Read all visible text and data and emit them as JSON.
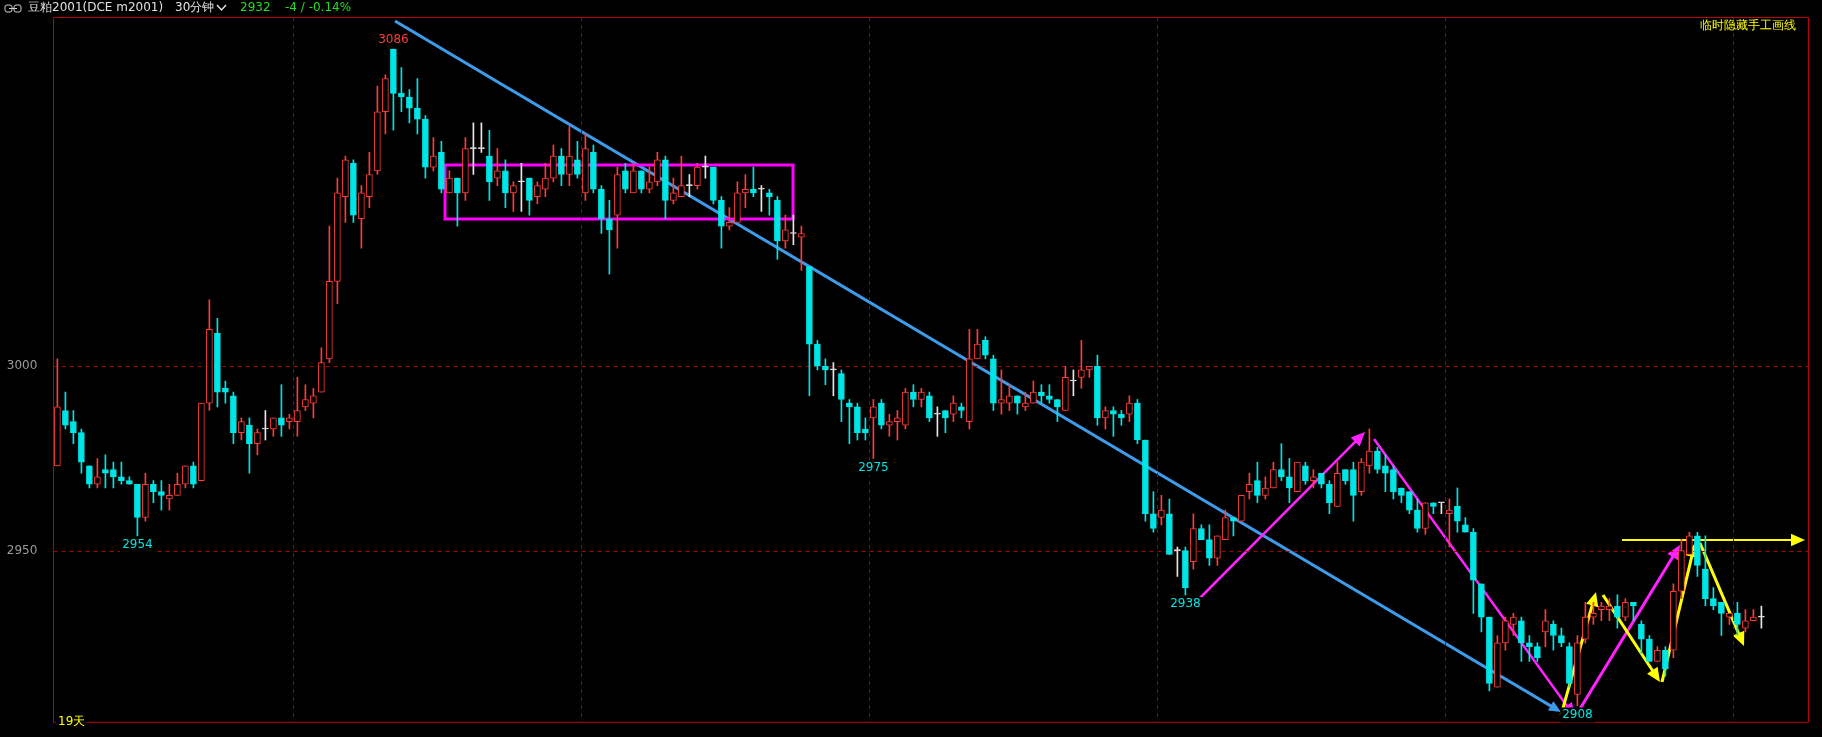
{
  "chart_data": {
    "type": "candlestick",
    "title": "豆粕2001(DCE m2001)",
    "subtitle": "30分钟",
    "annotations": [
      "2932",
      "-4 / -0.14%",
      "临时隐藏手工画线",
      "19天",
      {
        "text": "3086",
        "y": 3086
      },
      {
        "text": "2954",
        "y": 2954
      },
      {
        "text": "2975",
        "y": 2975
      },
      {
        "text": "2938",
        "y": 2938
      },
      {
        "text": "2908",
        "y": 2908
      }
    ],
    "categories": [
      null,
      null,
      null,
      null,
      null,
      null,
      null,
      null,
      null,
      null,
      null,
      null,
      null,
      null,
      null,
      null,
      null,
      null,
      null,
      null,
      null,
      null,
      null,
      null,
      null,
      null,
      null,
      null,
      null,
      null,
      null,
      null,
      null,
      null,
      null,
      null,
      null,
      null,
      null,
      null,
      null,
      null,
      null,
      null,
      null,
      null,
      null,
      null,
      null,
      null,
      null,
      null,
      null,
      null,
      null,
      null,
      null,
      null,
      null,
      null,
      null,
      null,
      null,
      null,
      null,
      null,
      null,
      null,
      null,
      null,
      null,
      null,
      null,
      null,
      null,
      null,
      null,
      null,
      null,
      null,
      null,
      null,
      null,
      null,
      null,
      null,
      null,
      null,
      null,
      null,
      null,
      null,
      null,
      null,
      null,
      null,
      null,
      null,
      null,
      null,
      null,
      null,
      null,
      null,
      null,
      null,
      null,
      null,
      null,
      null,
      null,
      null,
      null,
      null,
      null,
      null,
      null,
      null,
      null,
      null,
      null,
      null,
      null,
      null,
      null,
      null,
      null,
      null,
      null,
      null,
      null,
      null,
      null,
      null,
      null,
      null,
      null,
      null,
      null,
      null,
      null,
      null,
      null,
      null,
      null,
      null,
      null,
      null,
      null,
      null,
      null,
      null,
      null,
      null,
      null,
      null,
      null,
      null,
      null,
      null,
      null,
      null,
      null,
      null,
      null,
      null,
      null,
      null,
      null,
      null,
      null,
      null,
      null,
      null,
      null,
      null,
      null,
      null,
      null,
      null,
      null,
      null,
      null,
      null,
      null,
      null,
      null,
      null,
      null,
      null,
      null,
      null,
      null,
      null,
      null,
      null,
      null,
      null,
      null,
      null,
      null,
      null,
      null,
      null,
      null,
      null,
      null,
      null,
      null,
      null,
      null,
      null,
      null,
      null
    ],
    "ohlc": [
      [
        2973,
        3002,
        2973,
        2989
      ],
      [
        2988,
        2993,
        2983,
        2984
      ],
      [
        2985,
        2988,
        2979,
        2982
      ],
      [
        2982,
        2983,
        2971,
        2974
      ],
      [
        2973,
        2973,
        2967,
        2968
      ],
      [
        2968,
        2975,
        2967,
        2970
      ],
      [
        2972,
        2976,
        2967,
        2971
      ],
      [
        2972,
        2974,
        2967,
        2970
      ],
      [
        2970,
        2974,
        2968,
        2969
      ],
      [
        2969,
        2970,
        2968,
        2968
      ],
      [
        2968,
        2968,
        2954,
        2959
      ],
      [
        2959,
        2971,
        2958,
        2968
      ],
      [
        2968,
        2969,
        2963,
        2966
      ],
      [
        2966,
        2969,
        2961,
        2965
      ],
      [
        2964,
        2968,
        2961,
        2965
      ],
      [
        2965,
        2971,
        2965,
        2968
      ],
      [
        2968,
        2973,
        2967,
        2973
      ],
      [
        2973,
        2974,
        2967,
        2968
      ],
      [
        2969,
        2990,
        2969,
        2990
      ],
      [
        2990,
        3018,
        2988,
        3010
      ],
      [
        3009,
        3013,
        2989,
        2993
      ],
      [
        2994,
        2996,
        2990,
        2993
      ],
      [
        2992,
        2993,
        2979,
        2982
      ],
      [
        2982,
        2986,
        2980,
        2985
      ],
      [
        2984,
        2986,
        2971,
        2979
      ],
      [
        2979,
        2983,
        2976,
        2982
      ],
      [
        2983,
        2988,
        2980,
        2983
      ],
      [
        2983,
        2986,
        2981,
        2986
      ],
      [
        2986,
        2995,
        2981,
        2984
      ],
      [
        2985,
        2987,
        2983,
        2986
      ],
      [
        2985,
        2997,
        2981,
        2988
      ],
      [
        2989,
        2995,
        2988,
        2991
      ],
      [
        2990,
        2994,
        2986,
        2992
      ],
      [
        2993,
        3005,
        2993,
        3001
      ],
      [
        3002,
        3038,
        3001,
        3023
      ],
      [
        3023,
        3051,
        3017,
        3047
      ],
      [
        3046,
        3057,
        3039,
        3056
      ],
      [
        3055,
        3056,
        3039,
        3041
      ],
      [
        3040,
        3049,
        3032,
        3047
      ],
      [
        3046,
        3058,
        3043,
        3052
      ],
      [
        3053,
        3076,
        3052,
        3069
      ],
      [
        3069,
        3079,
        3063,
        3078
      ],
      [
        3086,
        3086,
        3064,
        3074
      ],
      [
        3074,
        3081,
        3069,
        3073
      ],
      [
        3073,
        3075,
        3066,
        3070
      ],
      [
        3070,
        3078,
        3063,
        3067
      ],
      [
        3067,
        3068,
        3051,
        3054
      ],
      [
        3054,
        3062,
        3053,
        3057
      ],
      [
        3058,
        3061,
        3047,
        3048
      ],
      [
        3047,
        3053,
        3047,
        3051
      ],
      [
        3051,
        3051,
        3038,
        3047
      ],
      [
        3047,
        3062,
        3045,
        3059
      ],
      [
        3059,
        3066,
        3052,
        3059
      ],
      [
        3059,
        3066,
        3058,
        3059
      ],
      [
        3057,
        3064,
        3045,
        3050
      ],
      [
        3051,
        3059,
        3049,
        3053
      ],
      [
        3053,
        3056,
        3043,
        3047
      ],
      [
        3047,
        3050,
        3042,
        3049
      ],
      [
        3050,
        3055,
        3042,
        3050
      ],
      [
        3051,
        3051,
        3041,
        3045
      ],
      [
        3046,
        3050,
        3044,
        3049
      ],
      [
        3048,
        3055,
        3046,
        3051
      ],
      [
        3051,
        3060,
        3050,
        3057
      ],
      [
        3057,
        3059,
        3049,
        3052
      ],
      [
        3052,
        3065,
        3049,
        3057
      ],
      [
        3056,
        3061,
        3051,
        3052
      ],
      [
        3047,
        3063,
        3045,
        3059
      ],
      [
        3058,
        3060,
        3047,
        3048
      ],
      [
        3048,
        3049,
        3036,
        3040
      ],
      [
        3040,
        3045,
        3025,
        3037
      ],
      [
        3041,
        3054,
        3032,
        3052
      ],
      [
        3053,
        3055,
        3047,
        3048
      ],
      [
        3047,
        3055,
        3047,
        3053
      ],
      [
        3053,
        3053,
        3047,
        3048
      ],
      [
        3048,
        3054,
        3047,
        3050
      ],
      [
        3050,
        3058,
        3049,
        3056
      ],
      [
        3056,
        3057,
        3040,
        3045
      ],
      [
        3045,
        3051,
        3044,
        3047
      ],
      [
        3046,
        3057,
        3046,
        3049
      ],
      [
        3049,
        3052,
        3046,
        3049
      ],
      [
        3049,
        3055,
        3048,
        3054
      ],
      [
        3054,
        3057,
        3051,
        3054
      ],
      [
        3054,
        3054,
        3044,
        3045
      ],
      [
        3045,
        3046,
        3032,
        3038
      ],
      [
        3038,
        3043,
        3037,
        3039
      ],
      [
        3039,
        3050,
        3039,
        3047
      ],
      [
        3047,
        3052,
        3043,
        3048
      ],
      [
        3048,
        3054,
        3046,
        3047
      ],
      [
        3048,
        3049,
        3042,
        3048
      ],
      [
        3047,
        3048,
        3041,
        3046
      ],
      [
        3045,
        3046,
        3029,
        3034
      ],
      [
        3034,
        3041,
        3032,
        3037
      ],
      [
        3036,
        3041,
        3033,
        3036
      ],
      [
        3035,
        3038,
        3026,
        3036
      ],
      [
        3027,
        3027,
        2992,
        3006
      ],
      [
        3006,
        3007,
        2999,
        3000
      ],
      [
        3000,
        3002,
        2995,
        2999
      ],
      [
        2999,
        3001,
        2992,
        2999
      ],
      [
        2998,
        2999,
        2985,
        2991
      ],
      [
        2990,
        2991,
        2979,
        2989
      ],
      [
        2989,
        2990,
        2980,
        2982
      ],
      [
        2983,
        2986,
        2980,
        2982
      ],
      [
        2986,
        2991,
        2975,
        2989
      ],
      [
        2990,
        2991,
        2983,
        2984
      ],
      [
        2984,
        2987,
        2981,
        2985
      ],
      [
        2985,
        2988,
        2980,
        2986
      ],
      [
        2984,
        2994,
        2983,
        2993
      ],
      [
        2993,
        2995,
        2989,
        2991
      ],
      [
        2991,
        2994,
        2989,
        2993
      ],
      [
        2992,
        2993,
        2985,
        2986
      ],
      [
        2987,
        2989,
        2981,
        2987
      ],
      [
        2988,
        2988,
        2982,
        2986
      ],
      [
        2987,
        2992,
        2985,
        2990
      ],
      [
        2989,
        2990,
        2986,
        2988
      ],
      [
        2985,
        3010,
        2983,
        3002
      ],
      [
        3002,
        3010,
        3002,
        3006
      ],
      [
        3007,
        3008,
        3002,
        3003
      ],
      [
        3002,
        3003,
        2988,
        2990
      ],
      [
        2990,
        2999,
        2987,
        2991
      ],
      [
        2990,
        2995,
        2988,
        2992
      ],
      [
        2992,
        2992,
        2987,
        2990
      ],
      [
        2989,
        2993,
        2988,
        2990
      ],
      [
        2990,
        2996,
        2990,
        2993
      ],
      [
        2993,
        2995,
        2990,
        2992
      ],
      [
        2992,
        2995,
        2990,
        2991
      ],
      [
        2991,
        2991,
        2985,
        2989
      ],
      [
        2988,
        3000,
        2988,
        2997
      ],
      [
        2996,
        2999,
        2992,
        2996
      ],
      [
        2997,
        3007,
        2994,
        2999
      ],
      [
        2999,
        3000,
        2997,
        3000
      ],
      [
        3000,
        3003,
        2984,
        2986
      ],
      [
        2986,
        2989,
        2983,
        2988
      ],
      [
        2988,
        2989,
        2981,
        2987
      ],
      [
        2987,
        2988,
        2984,
        2986
      ],
      [
        2987,
        2992,
        2985,
        2990
      ],
      [
        2990,
        2991,
        2979,
        2980
      ],
      [
        2980,
        2980,
        2958,
        2960
      ],
      [
        2960,
        2966,
        2955,
        2956
      ],
      [
        2959,
        2965,
        2957,
        2961
      ],
      [
        2960,
        2964,
        2949,
        2949
      ],
      [
        2950,
        2951,
        2943,
        2950
      ],
      [
        2950,
        2951,
        2938,
        2940
      ],
      [
        2947,
        2960,
        2945,
        2956
      ],
      [
        2956,
        2957,
        2953,
        2953
      ],
      [
        2953,
        2957,
        2946,
        2948
      ],
      [
        2948,
        2954,
        2946,
        2954
      ],
      [
        2953,
        2961,
        2953,
        2959
      ],
      [
        2959,
        2959,
        2954,
        2958
      ],
      [
        2958,
        2965,
        2958,
        2965
      ],
      [
        2966,
        2971,
        2964,
        2968
      ],
      [
        2969,
        2974,
        2963,
        2965
      ],
      [
        2965,
        2970,
        2964,
        2967
      ],
      [
        2967,
        2974,
        2967,
        2972
      ],
      [
        2972,
        2979,
        2969,
        2970
      ],
      [
        2970,
        2975,
        2963,
        2967
      ],
      [
        2966,
        2974,
        2966,
        2974
      ],
      [
        2973,
        2974,
        2968,
        2969
      ],
      [
        2969,
        2972,
        2967,
        2970
      ],
      [
        2971,
        2971,
        2967,
        2968
      ],
      [
        2968,
        2969,
        2960,
        2963
      ],
      [
        2962,
        2974,
        2962,
        2971
      ],
      [
        2972,
        2972,
        2968,
        2969
      ],
      [
        2972,
        2974,
        2958,
        2965
      ],
      [
        2966,
        2975,
        2965,
        2974
      ],
      [
        2973,
        2983,
        2971,
        2977
      ],
      [
        2977,
        2978,
        2971,
        2972
      ],
      [
        2973,
        2976,
        2966,
        2971
      ],
      [
        2972,
        2973,
        2964,
        2966
      ],
      [
        2967,
        2967,
        2963,
        2965
      ],
      [
        2966,
        2966,
        2960,
        2961
      ],
      [
        2961,
        2964,
        2955,
        2956
      ],
      [
        2956,
        2963,
        2954.5,
        2963
      ],
      [
        2963,
        2963,
        2960,
        2962
      ],
      [
        2963,
        2963,
        2960,
        2963
      ],
      [
        2960,
        2964,
        2951,
        2961
      ],
      [
        2962,
        2967,
        2955,
        2958
      ],
      [
        2957,
        2959,
        2955,
        2955
      ],
      [
        2955,
        2956,
        2933,
        2942
      ],
      [
        2941,
        2941,
        2928,
        2932
      ],
      [
        2932,
        2932,
        2912,
        2914
      ],
      [
        2913,
        2927,
        2913,
        2925
      ],
      [
        2925,
        2932,
        2923,
        2931
      ],
      [
        2930,
        2933,
        2927,
        2932
      ],
      [
        2931,
        2932,
        2920,
        2925
      ],
      [
        2925,
        2927,
        2920,
        2924
      ],
      [
        2924,
        2925,
        2920,
        2921
      ],
      [
        2928,
        2934,
        2924,
        2931
      ],
      [
        2930,
        2931,
        2923,
        2927
      ],
      [
        2927,
        2929,
        2924,
        2925
      ],
      [
        2924,
        2925,
        2913,
        2914
      ],
      [
        2911,
        2927,
        2908,
        2925
      ],
      [
        2926,
        2936,
        2925,
        2932
      ],
      [
        2932,
        2936,
        2930,
        2933
      ],
      [
        2934,
        2936,
        2931,
        2935
      ],
      [
        2934,
        2937,
        2931,
        2935
      ],
      [
        2935,
        2938,
        2929,
        2932
      ],
      [
        2932,
        2937,
        2931,
        2936
      ],
      [
        2936,
        2936,
        2931,
        2935
      ],
      [
        2930,
        2931,
        2922,
        2926
      ],
      [
        2926,
        2927,
        2920,
        2920
      ],
      [
        2920,
        2924,
        2920,
        2923
      ],
      [
        2923,
        2924,
        2916,
        2918
      ],
      [
        2923,
        2941,
        2921,
        2939
      ],
      [
        2939,
        2953,
        2937,
        2950
      ],
      [
        2949,
        2955,
        2949,
        2954
      ],
      [
        2954,
        2955,
        2943,
        2946
      ],
      [
        2945,
        2954,
        2935,
        2937
      ],
      [
        2937,
        2940,
        2934,
        2935
      ],
      [
        2936,
        2936,
        2927,
        2933
      ],
      [
        2932,
        2933,
        2930,
        2933
      ],
      [
        2933,
        2936,
        2927,
        2930
      ],
      [
        2929,
        2934,
        2928,
        2931
      ],
      [
        2931,
        2934,
        2931,
        2932
      ],
      [
        2932,
        2935,
        2929,
        2932
      ]
    ],
    "colors": [
      "#ff3c3c",
      "#00e6e6",
      "#00e6e6",
      "#00e6e6",
      "#00e6e6",
      "#ff3c3c",
      "#00e6e6",
      "#00e6e6",
      "#00e6e6",
      "#00e6e6",
      "#00e6e6",
      "#ff3c3c",
      "#00e6e6",
      "#00e6e6",
      "#ff3c3c",
      "#ff3c3c",
      "#ff3c3c",
      "#00e6e6",
      "#ff3c3c",
      "#ff3c3c",
      "#00e6e6",
      "#00e6e6",
      "#00e6e6",
      "#ff3c3c",
      "#00e6e6",
      "#ff3c3c",
      "#e6e6e6",
      "#ff3c3c",
      "#00e6e6",
      "#ff3c3c",
      "#ff3c3c",
      "#ff3c3c",
      "#ff3c3c",
      "#ff3c3c",
      "#ff3c3c",
      "#ff3c3c",
      "#ff3c3c",
      "#00e6e6",
      "#ff3c3c",
      "#ff3c3c",
      "#ff3c3c",
      "#ff3c3c",
      "#00e6e6",
      "#00e6e6",
      "#00e6e6",
      "#00e6e6",
      "#00e6e6",
      "#ff3c3c",
      "#00e6e6",
      "#ff3c3c",
      "#00e6e6",
      "#ff3c3c",
      "#e6e6e6",
      "#e6e6e6",
      "#00e6e6",
      "#ff3c3c",
      "#00e6e6",
      "#ff3c3c",
      "#e6e6e6",
      "#00e6e6",
      "#ff3c3c",
      "#ff3c3c",
      "#ff3c3c",
      "#00e6e6",
      "#ff3c3c",
      "#00e6e6",
      "#ff3c3c",
      "#00e6e6",
      "#00e6e6",
      "#00e6e6",
      "#ff3c3c",
      "#00e6e6",
      "#ff3c3c",
      "#00e6e6",
      "#ff3c3c",
      "#ff3c3c",
      "#00e6e6",
      "#ff3c3c",
      "#ff3c3c",
      "#e6e6e6",
      "#ff3c3c",
      "#e6e6e6",
      "#00e6e6",
      "#00e6e6",
      "#ff3c3c",
      "#ff3c3c",
      "#ff3c3c",
      "#00e6e6",
      "#e6e6e6",
      "#00e6e6",
      "#00e6e6",
      "#ff3c3c",
      "#e6e6e6",
      "#ff3c3c",
      "#00e6e6",
      "#00e6e6",
      "#00e6e6",
      "#e6e6e6",
      "#00e6e6",
      "#00e6e6",
      "#00e6e6",
      "#00e6e6",
      "#ff3c3c",
      "#00e6e6",
      "#ff3c3c",
      "#ff3c3c",
      "#ff3c3c",
      "#00e6e6",
      "#ff3c3c",
      "#00e6e6",
      "#e6e6e6",
      "#00e6e6",
      "#ff3c3c",
      "#00e6e6",
      "#ff3c3c",
      "#ff3c3c",
      "#00e6e6",
      "#00e6e6",
      "#ff3c3c",
      "#ff3c3c",
      "#00e6e6",
      "#ff3c3c",
      "#ff3c3c",
      "#00e6e6",
      "#00e6e6",
      "#00e6e6",
      "#ff3c3c",
      "#e6e6e6",
      "#ff3c3c",
      "#ff3c3c",
      "#00e6e6",
      "#ff3c3c",
      "#00e6e6",
      "#00e6e6",
      "#ff3c3c",
      "#00e6e6",
      "#00e6e6",
      "#00e6e6",
      "#ff3c3c",
      "#00e6e6",
      "#e6e6e6",
      "#00e6e6",
      "#ff3c3c",
      "#00e6e6",
      "#00e6e6",
      "#ff3c3c",
      "#ff3c3c",
      "#00e6e6",
      "#ff3c3c",
      "#ff3c3c",
      "#00e6e6",
      "#ff3c3c",
      "#ff3c3c",
      "#00e6e6",
      "#00e6e6",
      "#ff3c3c",
      "#00e6e6",
      "#ff3c3c",
      "#00e6e6",
      "#00e6e6",
      "#ff3c3c",
      "#00e6e6",
      "#00e6e6",
      "#ff3c3c",
      "#ff3c3c",
      "#00e6e6",
      "#00e6e6",
      "#00e6e6",
      "#00e6e6",
      "#00e6e6",
      "#00e6e6",
      "#ff3c3c",
      "#00e6e6",
      "#e6e6e6",
      "#ff3c3c",
      "#00e6e6",
      "#00e6e6",
      "#00e6e6",
      "#00e6e6",
      "#00e6e6",
      "#ff3c3c",
      "#ff3c3c",
      "#ff3c3c",
      "#00e6e6",
      "#00e6e6",
      "#00e6e6",
      "#ff3c3c",
      "#00e6e6",
      "#00e6e6",
      "#00e6e6",
      "#ff3c3c",
      "#ff3c3c",
      "#ff3c3c",
      "#ff3c3c",
      "#ff3c3c",
      "#00e6e6",
      "#ff3c3c",
      "#00e6e6",
      "#00e6e6",
      "#00e6e6",
      "#ff3c3c",
      "#00e6e6",
      "#ff3c3c",
      "#ff3c3c",
      "#ff3c3c",
      "#00e6e6",
      "#00e6e6",
      "#00e6e6",
      "#00e6e6",
      "#ff3c3c",
      "#00e6e6",
      "#ff3c3c",
      "#ff3c3c",
      "#e6e6e6"
    ],
    "ylim": [
      2903.6,
      3094.7
    ],
    "yticks": [
      3000,
      2950
    ],
    "grid": true,
    "tick_labels": "y"
  }
}
